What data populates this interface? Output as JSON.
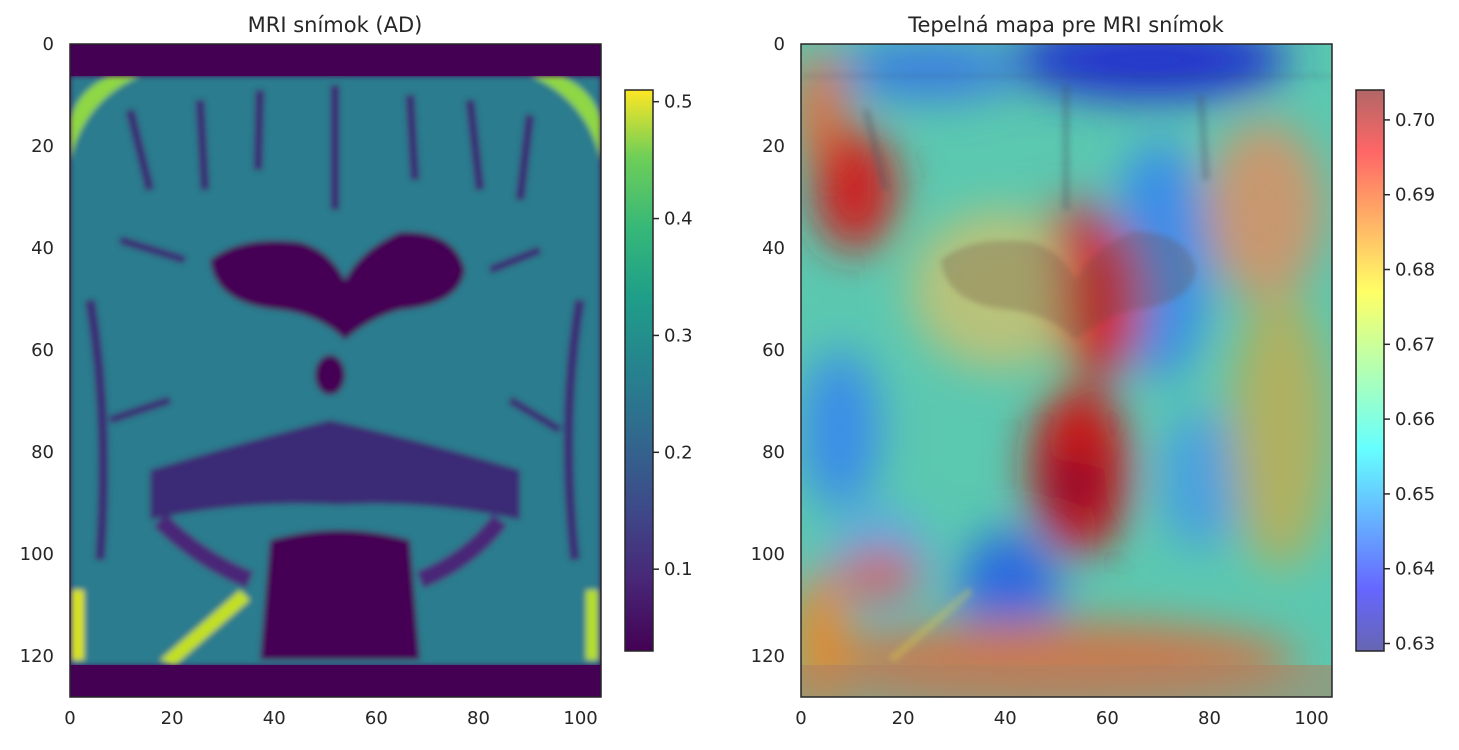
{
  "chart_data": [
    {
      "type": "heatmap",
      "title": "MRI snímok (AD)",
      "xlim": [
        0,
        104
      ],
      "ylim": [
        128,
        0
      ],
      "x_ticks": [
        "0",
        "20",
        "40",
        "60",
        "80",
        "100"
      ],
      "y_ticks": [
        "0",
        "20",
        "40",
        "60",
        "80",
        "100",
        "120"
      ],
      "x_tick_values": [
        0,
        20,
        40,
        60,
        80,
        100
      ],
      "y_tick_values": [
        0,
        20,
        40,
        60,
        80,
        100,
        120
      ],
      "colormap": "viridis",
      "colorbar": {
        "range": [
          0.03,
          0.51
        ],
        "ticks": [
          "0.1",
          "0.2",
          "0.3",
          "0.4",
          "0.5"
        ],
        "tick_values": [
          0.1,
          0.2,
          0.3,
          0.4,
          0.5
        ]
      }
    },
    {
      "type": "heatmap",
      "title": "Tepelná mapa pre MRI snímok",
      "xlim": [
        0,
        104
      ],
      "ylim": [
        128,
        0
      ],
      "x_ticks": [
        "0",
        "20",
        "40",
        "60",
        "80",
        "100"
      ],
      "y_ticks": [
        "0",
        "20",
        "40",
        "60",
        "80",
        "100",
        "120"
      ],
      "x_tick_values": [
        0,
        20,
        40,
        60,
        80,
        100
      ],
      "y_tick_values": [
        0,
        20,
        40,
        60,
        80,
        100,
        120
      ],
      "colormap": "jet",
      "overlay_alpha": 0.5,
      "colorbar": {
        "range": [
          0.629,
          0.704
        ],
        "ticks": [
          "0.70",
          "0.69",
          "0.68",
          "0.67",
          "0.66",
          "0.65",
          "0.64",
          "0.63"
        ],
        "tick_values": [
          0.7,
          0.69,
          0.68,
          0.67,
          0.66,
          0.65,
          0.64,
          0.63
        ]
      }
    }
  ]
}
